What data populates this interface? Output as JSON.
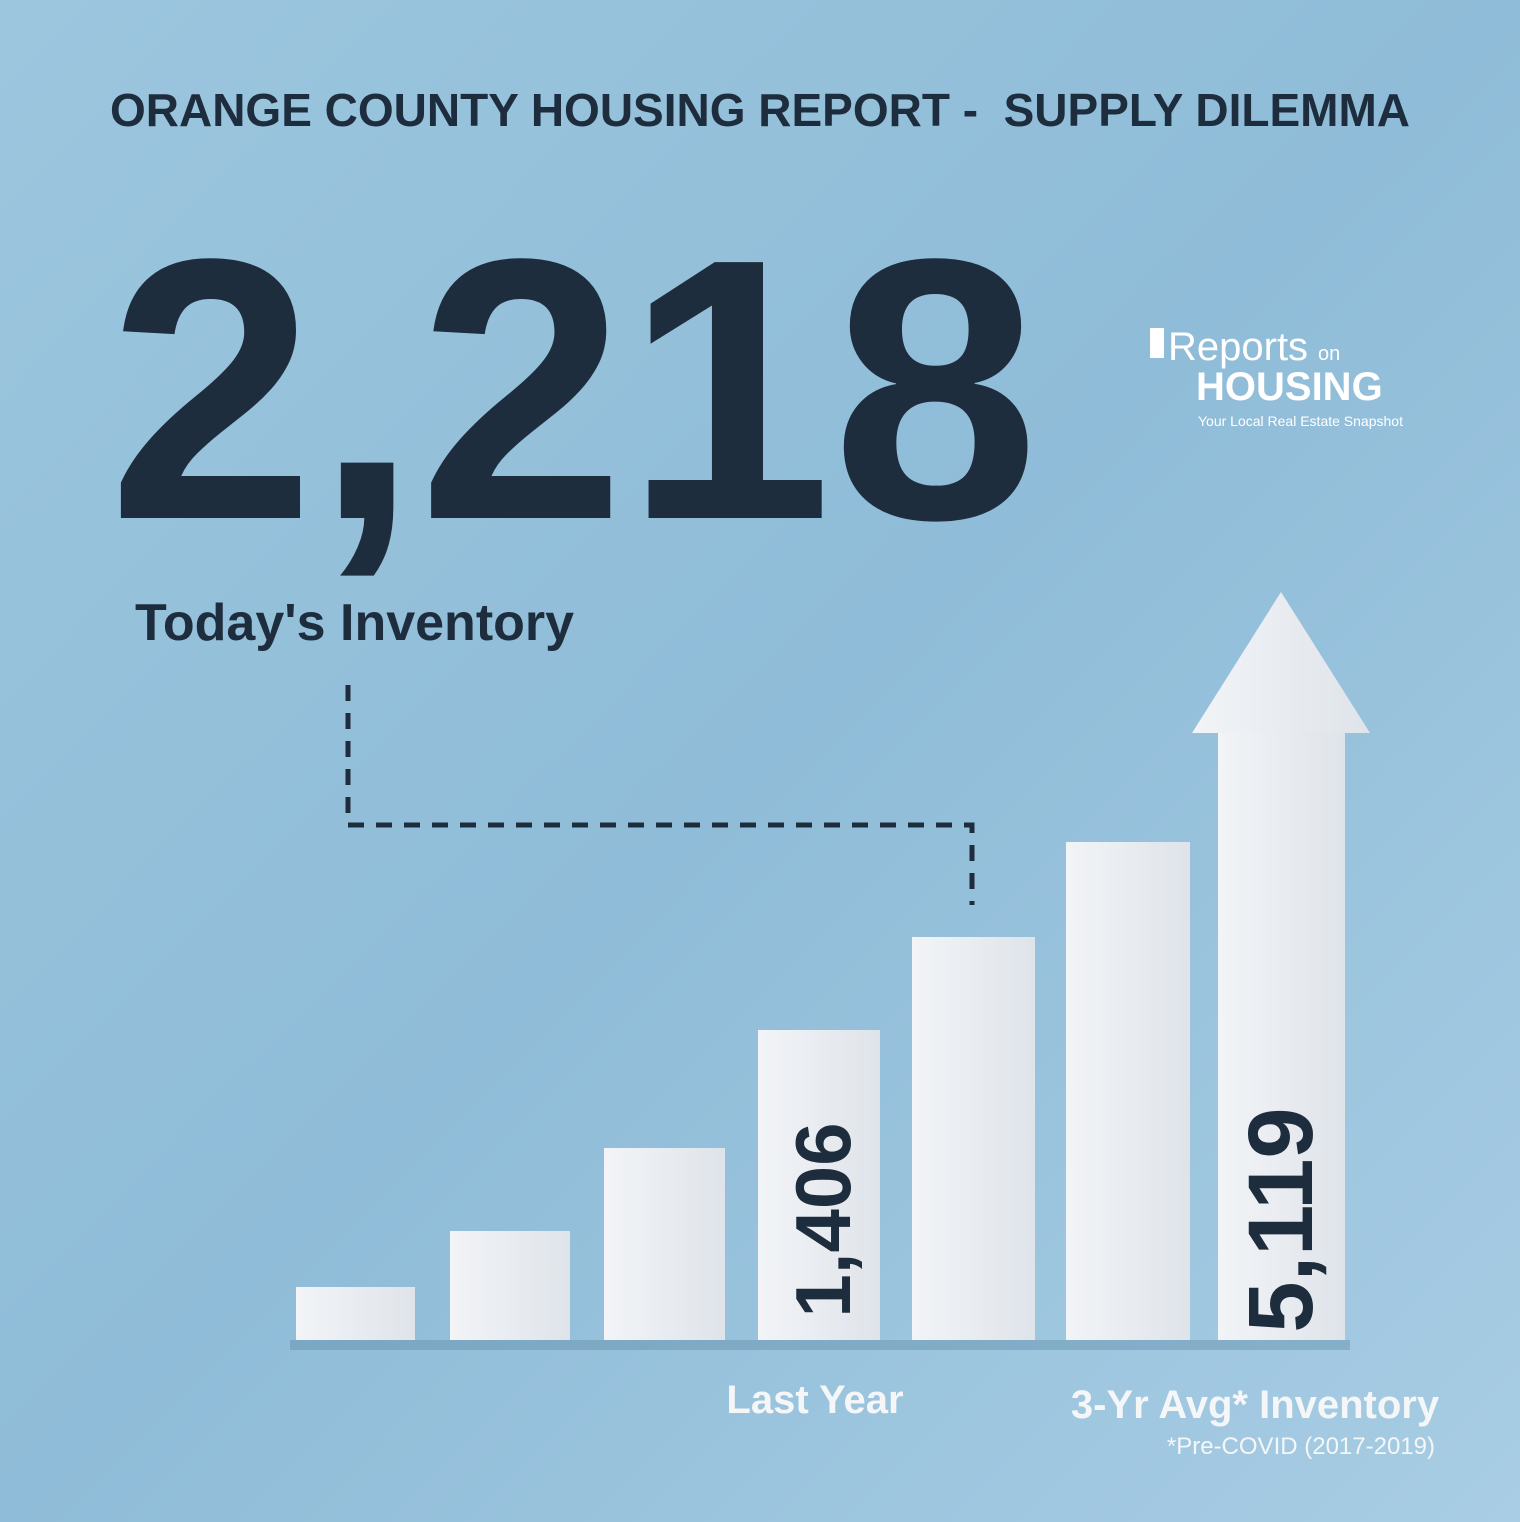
{
  "header": {
    "title": "ORANGE COUNTY HOUSING REPORT -  SUPPLY DILEMMA"
  },
  "headline": {
    "value": "2,218",
    "label": "Today's Inventory"
  },
  "logo": {
    "name_top": "Reports",
    "name_on": "on",
    "name_bottom": "HOUSING",
    "tagline": "Your Local Real Estate Snapshot"
  },
  "bars": {
    "last_year": {
      "value": "1,406",
      "label": "Last Year"
    },
    "avg": {
      "value": "5,119",
      "label": "3-Yr Avg* Inventory",
      "note": "*Pre-COVID (2017-2019)"
    }
  }
}
